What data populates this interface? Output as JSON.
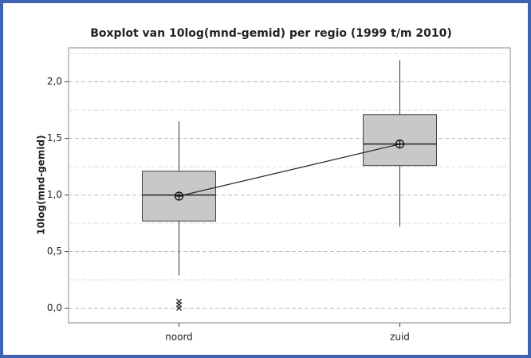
{
  "chart_data": {
    "type": "box",
    "title": "Boxplot van 10log(mnd-gemid) per regio (1999 t/m 2010)",
    "y_label": "10log(mnd-gemid)",
    "categories": [
      "noord",
      "zuid"
    ],
    "boxes": [
      {
        "min": 0.29,
        "q1": 0.77,
        "median": 1.0,
        "q3": 1.21,
        "max": 1.65,
        "mean": 0.99,
        "outliers": [
          0.06,
          0.03,
          0.0
        ]
      },
      {
        "min": 0.72,
        "q1": 1.26,
        "median": 1.45,
        "q3": 1.71,
        "max": 2.19,
        "mean": 1.45,
        "outliers": []
      }
    ],
    "color": "#c8c8c8",
    "ylim": [
      -0.13,
      2.3
    ],
    "yticks": [
      {
        "value": 0,
        "label": "0,0"
      },
      {
        "value": 0.5,
        "label": "0,5"
      },
      {
        "value": 1,
        "label": "1,0"
      },
      {
        "value": 1.5,
        "label": "1,5"
      },
      {
        "value": 2,
        "label": "2,0"
      }
    ],
    "minor_yticks": [
      0.25,
      0.75,
      1.25,
      1.75,
      2.25
    ],
    "grid": true,
    "mean_line": true
  }
}
